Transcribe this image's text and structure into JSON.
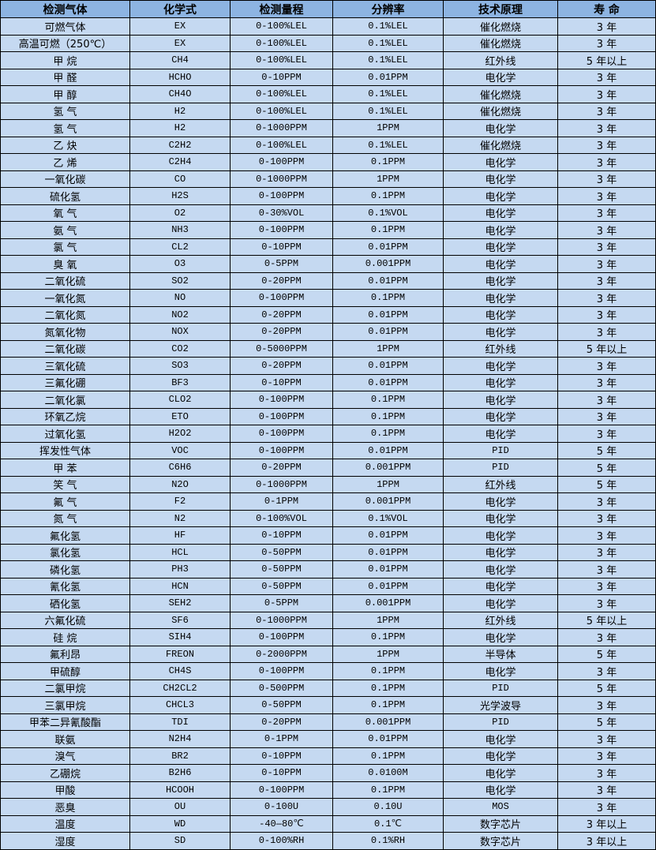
{
  "header": {
    "colors": {
      "header_bg": "#8db4e2",
      "row_bg": "#c5d9f1",
      "border": "#000000"
    },
    "columns": [
      "检测气体",
      "化学式",
      "检测量程",
      "分辨率",
      "技术原理",
      "寿 命"
    ]
  },
  "rows": [
    [
      "可燃气体",
      "EX",
      "0-100%LEL",
      "0.1%LEL",
      "催化燃烧",
      "3 年"
    ],
    [
      "高温可燃（250℃）",
      "EX",
      "0-100%LEL",
      "0.1%LEL",
      "催化燃烧",
      "3 年"
    ],
    [
      "甲 烷",
      "CH4",
      "0-100%LEL",
      "0.1%LEL",
      "红外线",
      "5 年以上"
    ],
    [
      "甲 醛",
      "HCHO",
      "0-10PPM",
      "0.01PPM",
      "电化学",
      "3 年"
    ],
    [
      "甲 醇",
      "CH4O",
      "0-100%LEL",
      "0.1%LEL",
      "催化燃烧",
      "3 年"
    ],
    [
      "氢 气",
      "H2",
      "0-100%LEL",
      "0.1%LEL",
      "催化燃烧",
      "3 年"
    ],
    [
      "氢 气",
      "H2",
      "0-1000PPM",
      "1PPM",
      "电化学",
      "3 年"
    ],
    [
      "乙 炔",
      "C2H2",
      "0-100%LEL",
      "0.1%LEL",
      "催化燃烧",
      "3 年"
    ],
    [
      "乙 烯",
      "C2H4",
      "0-100PPM",
      "0.1PPM",
      "电化学",
      "3 年"
    ],
    [
      "一氧化碳",
      "CO",
      "0-1000PPM",
      "1PPM",
      "电化学",
      "3 年"
    ],
    [
      "硫化氢",
      "H2S",
      "0-100PPM",
      "0.1PPM",
      "电化学",
      "3 年"
    ],
    [
      "氧 气",
      "O2",
      "0-30%VOL",
      "0.1%VOL",
      "电化学",
      "3 年"
    ],
    [
      "氨 气",
      "NH3",
      "0-100PPM",
      "0.1PPM",
      "电化学",
      "3 年"
    ],
    [
      "氯 气",
      "CL2",
      "0-10PPM",
      "0.01PPM",
      "电化学",
      "3 年"
    ],
    [
      "臭 氧",
      "O3",
      "0-5PPM",
      "0.001PPM",
      "电化学",
      "3 年"
    ],
    [
      "二氧化硫",
      "SO2",
      "0-20PPM",
      "0.01PPM",
      "电化学",
      "3 年"
    ],
    [
      "一氧化氮",
      "NO",
      "0-100PPM",
      "0.1PPM",
      "电化学",
      "3 年"
    ],
    [
      "二氧化氮",
      "NO2",
      "0-20PPM",
      "0.01PPM",
      "电化学",
      "3 年"
    ],
    [
      "氮氧化物",
      "NOX",
      "0-20PPM",
      "0.01PPM",
      "电化学",
      "3 年"
    ],
    [
      "二氧化碳",
      "CO2",
      "0-5000PPM",
      "1PPM",
      "红外线",
      "5 年以上"
    ],
    [
      "三氧化硫",
      "SO3",
      "0-20PPM",
      "0.01PPM",
      "电化学",
      "3 年"
    ],
    [
      "三氟化硼",
      "BF3",
      "0-10PPM",
      "0.01PPM",
      "电化学",
      "3 年"
    ],
    [
      "二氧化氯",
      "CLO2",
      "0-100PPM",
      "0.1PPM",
      "电化学",
      "3 年"
    ],
    [
      "环氧乙烷",
      "ETO",
      "0-100PPM",
      "0.1PPM",
      "电化学",
      "3 年"
    ],
    [
      "过氧化氢",
      "H2O2",
      "0-100PPM",
      "0.1PPM",
      "电化学",
      "3 年"
    ],
    [
      "挥发性气体",
      "VOC",
      "0-100PPM",
      "0.01PPM",
      "PID",
      "5 年"
    ],
    [
      "甲 苯",
      "C6H6",
      "0-20PPM",
      "0.001PPM",
      "PID",
      "5 年"
    ],
    [
      "笑 气",
      "N2O",
      "0-1000PPM",
      "1PPM",
      "红外线",
      "5 年"
    ],
    [
      "氟 气",
      "F2",
      "0-1PPM",
      "0.001PPM",
      "电化学",
      "3 年"
    ],
    [
      "氮 气",
      "N2",
      "0-100%VOL",
      "0.1%VOL",
      "电化学",
      "3 年"
    ],
    [
      "氟化氢",
      "HF",
      "0-10PPM",
      "0.01PPM",
      "电化学",
      "3 年"
    ],
    [
      "氯化氢",
      "HCL",
      "0-50PPM",
      "0.01PPM",
      "电化学",
      "3 年"
    ],
    [
      "磷化氢",
      "PH3",
      "0-50PPM",
      "0.01PPM",
      "电化学",
      "3 年"
    ],
    [
      "氰化氢",
      "HCN",
      "0-50PPM",
      "0.01PPM",
      "电化学",
      "3 年"
    ],
    [
      "硒化氢",
      "SEH2",
      "0-5PPM",
      "0.001PPM",
      "电化学",
      "3 年"
    ],
    [
      "六氟化硫",
      "SF6",
      "0-1000PPM",
      "1PPM",
      "红外线",
      "5 年以上"
    ],
    [
      "硅 烷",
      "SIH4",
      "0-100PPM",
      "0.1PPM",
      "电化学",
      "3 年"
    ],
    [
      "氟利昂",
      "FREON",
      "0-2000PPM",
      "1PPM",
      "半导体",
      "5 年"
    ],
    [
      "甲硫醇",
      "CH4S",
      "0-100PPM",
      "0.1PPM",
      "电化学",
      "3 年"
    ],
    [
      "二氯甲烷",
      "CH2CL2",
      "0-500PPM",
      "0.1PPM",
      "PID",
      "5 年"
    ],
    [
      "三氯甲烷",
      "CHCL3",
      "0-50PPM",
      "0.1PPM",
      "光学波导",
      "3 年"
    ],
    [
      "甲苯二异氰酸酯",
      "TDI",
      "0-20PPM",
      "0.001PPM",
      "PID",
      "5 年"
    ],
    [
      "联氨",
      "N2H4",
      "0-1PPM",
      "0.01PPM",
      "电化学",
      "3 年"
    ],
    [
      "溴气",
      "BR2",
      "0-10PPM",
      "0.1PPM",
      "电化学",
      "3 年"
    ],
    [
      "乙硼烷",
      "B2H6",
      "0-10PPM",
      "0.0100M",
      "电化学",
      "3 年"
    ],
    [
      "甲酸",
      "HCOOH",
      "0-100PPM",
      "0.1PPM",
      "电化学",
      "3 年"
    ],
    [
      "恶臭",
      "OU",
      "0-100U",
      "0.10U",
      "MOS",
      "3 年"
    ],
    [
      "温度",
      "WD",
      "-40—80℃",
      "0.1℃",
      "数字芯片",
      "3 年以上"
    ],
    [
      "湿度",
      "SD",
      "0-100%RH",
      "0.1%RH",
      "数字芯片",
      "3 年以上"
    ]
  ]
}
